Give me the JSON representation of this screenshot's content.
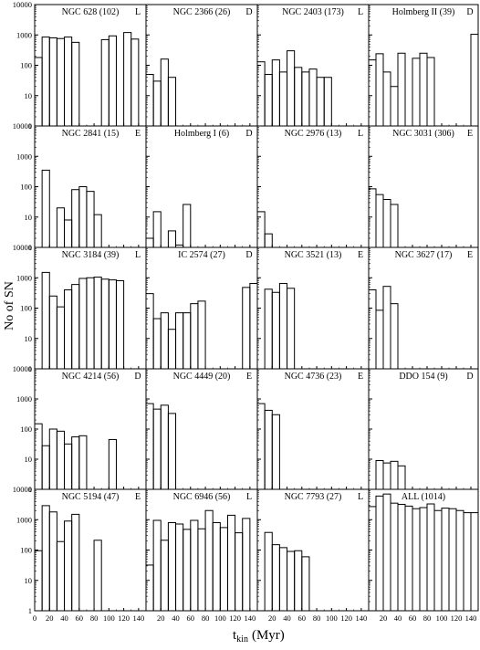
{
  "figure": {
    "ylabel": "No of SN",
    "xlabel_main": "t",
    "xlabel_sub": "kin",
    "xlabel_unit": "(Myr)"
  },
  "chart_data": {
    "type": "bar",
    "layout": "grid 4 columns x 5 rows, shared axes",
    "xlim": [
      0,
      150
    ],
    "ylim": [
      1,
      10000
    ],
    "yscale": "log",
    "bin_width_myr": 10,
    "x_ticks_left_column": [
      0,
      20,
      40,
      60,
      80,
      100,
      120,
      140
    ],
    "x_ticks_other_columns": [
      20,
      40,
      60,
      80,
      100,
      120,
      140
    ],
    "y_ticks": [
      1,
      10,
      100,
      1000,
      10000
    ],
    "y_tick_labels": [
      "1",
      "10",
      "100",
      "1000",
      "10000"
    ],
    "panels": [
      {
        "name": "NGC 628 (102)",
        "type": "L",
        "bins_start": [
          0,
          10,
          20,
          30,
          40,
          50,
          60,
          70,
          80,
          90,
          100,
          110,
          120,
          130
        ],
        "values": [
          180,
          850,
          800,
          760,
          850,
          570,
          null,
          null,
          null,
          700,
          930,
          null,
          1200,
          730
        ]
      },
      {
        "name": "NGC 2366 (26)",
        "type": "D",
        "bins_start": [
          0,
          10,
          20,
          30
        ],
        "values": [
          50,
          30,
          160,
          40
        ]
      },
      {
        "name": "NGC 2403 (173)",
        "type": "L",
        "bins_start": [
          0,
          10,
          20,
          30,
          40,
          50,
          60,
          70,
          80,
          90
        ],
        "values": [
          130,
          50,
          150,
          60,
          300,
          85,
          60,
          75,
          40,
          40
        ]
      },
      {
        "name": "Holmberg II (39)",
        "type": "D",
        "bins_start": [
          0,
          10,
          20,
          30,
          40,
          50,
          60,
          70,
          80,
          90,
          140
        ],
        "values": [
          150,
          240,
          60,
          20,
          250,
          null,
          170,
          250,
          180,
          null,
          1050
        ]
      },
      {
        "name": "NGC 2841 (15)",
        "type": "E",
        "bins_start": [
          10,
          30,
          40,
          50,
          60,
          70,
          80
        ],
        "values": [
          350,
          20,
          8,
          80,
          100,
          70,
          12
        ]
      },
      {
        "name": "Holmberg I (6)",
        "type": "D",
        "bins_start": [
          0,
          10,
          30,
          40,
          50
        ],
        "values": [
          2,
          15,
          3.5,
          1.2,
          26
        ]
      },
      {
        "name": "NGC 2976 (13)",
        "type": "L",
        "bins_start": [
          0,
          10
        ],
        "values": [
          15,
          2.8
        ]
      },
      {
        "name": "NGC 3031 (306)",
        "type": "E",
        "bins_start": [
          0,
          10,
          20,
          30
        ],
        "values": [
          85,
          55,
          38,
          26
        ]
      },
      {
        "name": "NGC 3184 (39)",
        "type": "L",
        "bins_start": [
          10,
          20,
          30,
          40,
          50,
          60,
          70,
          80,
          90,
          100,
          110
        ],
        "values": [
          1500,
          250,
          110,
          400,
          600,
          950,
          1000,
          1050,
          900,
          850,
          800
        ]
      },
      {
        "name": "IC 2574 (27)",
        "type": "D",
        "bins_start": [
          0,
          10,
          20,
          30,
          40,
          50,
          60,
          70,
          130,
          140
        ],
        "values": [
          300,
          45,
          70,
          20,
          70,
          70,
          140,
          170,
          480,
          650
        ]
      },
      {
        "name": "NGC 3521 (13)",
        "type": "E",
        "bins_start": [
          10,
          20,
          30,
          40
        ],
        "values": [
          420,
          330,
          650,
          450
        ]
      },
      {
        "name": "NGC 3627 (17)",
        "type": "E",
        "bins_start": [
          0,
          10,
          20,
          30
        ],
        "values": [
          400,
          85,
          520,
          140
        ]
      },
      {
        "name": "NGC 4214 (56)",
        "type": "D",
        "bins_start": [
          0,
          10,
          20,
          30,
          40,
          50,
          60,
          100
        ],
        "values": [
          150,
          28,
          100,
          85,
          32,
          55,
          60,
          45
        ]
      },
      {
        "name": "NGC 4449 (20)",
        "type": "E",
        "bins_start": [
          0,
          10,
          20,
          30
        ],
        "values": [
          700,
          460,
          620,
          330
        ]
      },
      {
        "name": "NGC 4736 (23)",
        "type": "E",
        "bins_start": [
          0,
          10,
          20
        ],
        "values": [
          700,
          420,
          300
        ]
      },
      {
        "name": "DDO 154 (9)",
        "type": "D",
        "bins_start": [
          10,
          20,
          30,
          40
        ],
        "values": [
          9,
          7.5,
          8.5,
          6
        ]
      },
      {
        "name": "NGC 5194 (47)",
        "type": "E",
        "bins_start": [
          0,
          10,
          20,
          30,
          40,
          50,
          80
        ],
        "values": [
          95,
          2900,
          1800,
          190,
          900,
          1500,
          210
        ]
      },
      {
        "name": "NGC 6946 (56)",
        "type": "L",
        "bins_start": [
          0,
          10,
          20,
          30,
          40,
          50,
          60,
          70,
          80,
          90,
          100,
          110,
          120,
          130
        ],
        "values": [
          32,
          950,
          210,
          800,
          720,
          480,
          950,
          500,
          2000,
          800,
          550,
          1400,
          370,
          1100
        ]
      },
      {
        "name": "NGC 7793 (27)",
        "type": "L",
        "bins_start": [
          10,
          20,
          30,
          40,
          50,
          60
        ],
        "values": [
          380,
          150,
          120,
          90,
          95,
          60
        ]
      },
      {
        "name": "ALL (1014)",
        "type": "",
        "bins_start": [
          0,
          10,
          20,
          30,
          40,
          50,
          60,
          70,
          80,
          90,
          100,
          110,
          120,
          130,
          140
        ],
        "values": [
          2700,
          6000,
          7000,
          3500,
          3200,
          2800,
          2300,
          2500,
          3300,
          2000,
          2400,
          2300,
          2000,
          1700,
          1700
        ]
      }
    ]
  }
}
